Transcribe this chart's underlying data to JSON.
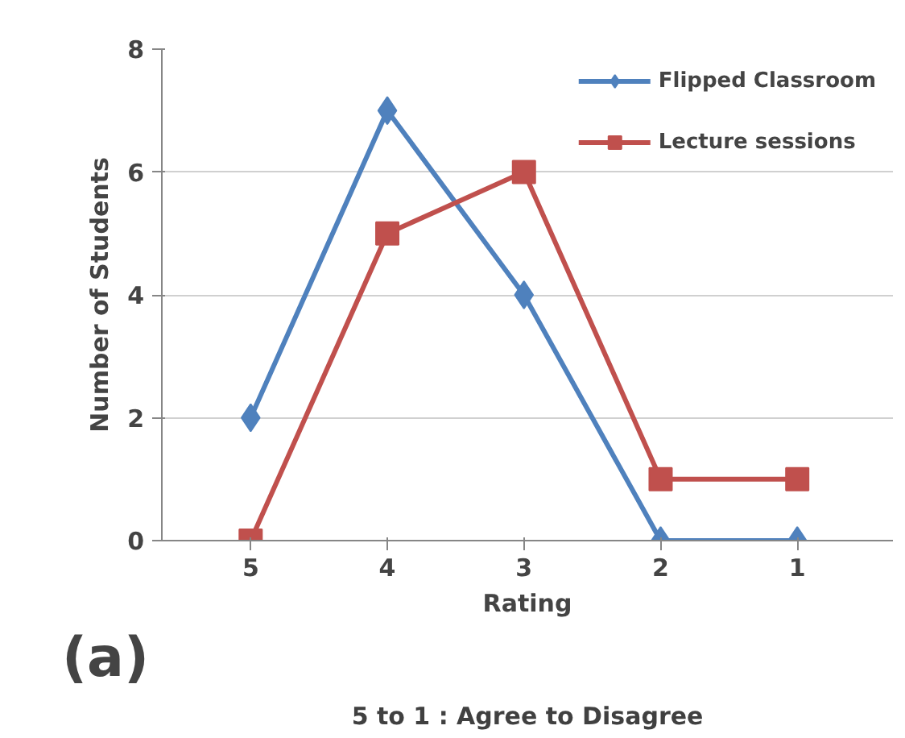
{
  "chart_data": {
    "type": "line",
    "categories": [
      "5",
      "4",
      "3",
      "2",
      "1"
    ],
    "series": [
      {
        "name": "Flipped Classroom",
        "color": "#4f81bd",
        "marker": "diamond",
        "values": [
          2,
          7,
          4,
          0,
          0
        ]
      },
      {
        "name": "Lecture sessions",
        "color": "#c0504d",
        "marker": "square",
        "values": [
          0,
          5,
          6,
          1,
          1
        ]
      }
    ],
    "ylabel": "Number of Students",
    "xlabel": "Rating",
    "annotations": [
      "5 to 1 : Agree to Disagree",
      "(a)"
    ],
    "ylim": [
      0,
      8
    ],
    "yticks": [
      0,
      2,
      4,
      6,
      8
    ],
    "grid": "y",
    "legend": "top right",
    "line_style": "solid"
  }
}
